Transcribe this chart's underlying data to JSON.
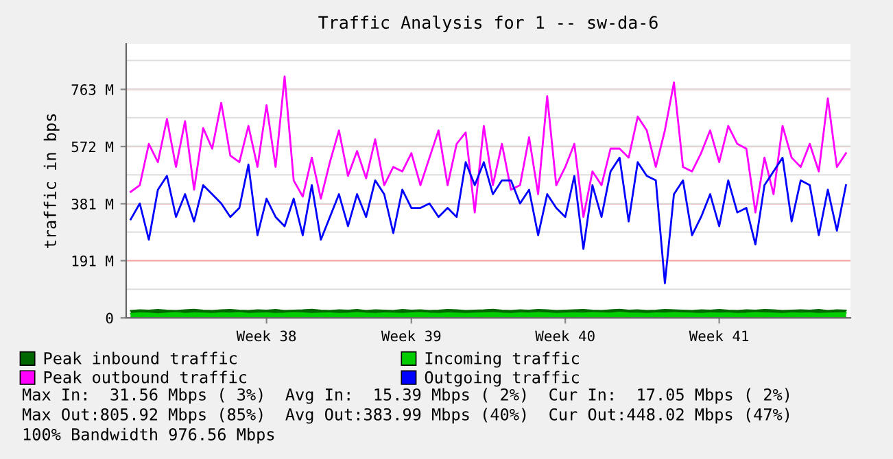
{
  "chart_data": {
    "type": "line",
    "title": "Traffic Analysis for 1 -- sw-da-6",
    "ylabel": "traffic in bps",
    "categories": [
      null,
      null,
      null,
      null,
      null,
      null,
      null,
      null,
      null,
      null,
      null,
      null,
      null,
      null,
      null,
      "Week 38",
      null,
      null,
      null,
      null,
      null,
      null,
      null,
      null,
      null,
      null,
      null,
      null,
      null,
      null,
      null,
      "Week 39",
      null,
      null,
      null,
      null,
      null,
      null,
      null,
      null,
      null,
      null,
      null,
      null,
      null,
      null,
      null,
      null,
      "Week 40",
      null,
      null,
      null,
      null,
      null,
      null,
      null,
      null,
      null,
      null,
      null,
      null,
      null,
      null,
      null,
      null,
      "Week 41",
      null,
      null,
      null,
      null,
      null,
      null,
      null,
      null,
      null,
      null,
      null,
      null,
      null,
      null
    ],
    "series": [
      {
        "name": "Peak inbound traffic",
        "color": "#006600",
        "type": "area",
        "values": [
          24,
          26,
          25,
          27,
          25,
          24,
          26,
          28,
          25,
          24,
          26,
          27,
          25,
          24,
          26,
          25,
          27,
          24,
          25,
          26,
          28,
          25,
          24,
          26,
          25,
          27,
          24,
          26,
          25,
          24,
          27,
          25,
          26,
          24,
          25,
          27,
          26,
          24,
          25,
          26,
          28,
          25,
          24,
          26,
          25,
          27,
          26,
          24,
          25,
          26,
          27,
          25,
          24,
          26,
          28,
          25,
          26,
          24,
          25,
          27,
          26,
          25,
          24,
          26,
          25,
          27,
          25,
          24,
          26,
          25,
          27,
          26,
          24,
          25,
          26,
          25,
          27,
          24,
          26,
          25
        ]
      },
      {
        "name": "Incoming traffic",
        "color": "#00cc00",
        "type": "area",
        "values": [
          14,
          16,
          15,
          13,
          15,
          17,
          14,
          16,
          15,
          14,
          16,
          15,
          17,
          14,
          15,
          16,
          14,
          15,
          17,
          16,
          14,
          15,
          16,
          14,
          15,
          17,
          15,
          14,
          16,
          15,
          14,
          16,
          17,
          15,
          14,
          16,
          15,
          14,
          15,
          16,
          17,
          15,
          14,
          16,
          15,
          17,
          16,
          14,
          15,
          16,
          15,
          17,
          16,
          15,
          18,
          16,
          15,
          14,
          16,
          15,
          17,
          16,
          15,
          14,
          16,
          15,
          16,
          14,
          15,
          17,
          16,
          15,
          14,
          16,
          15,
          16,
          14,
          15,
          16,
          17
        ]
      },
      {
        "name": "Peak outbound traffic",
        "color": "#ff00ff",
        "values": [
          421,
          443,
          581,
          520,
          664,
          504,
          657,
          428,
          634,
          565,
          718,
          542,
          520,
          641,
          504,
          710,
          504,
          806,
          459,
          405,
          535,
          398,
          520,
          626,
          474,
          557,
          466,
          596,
          443,
          504,
          489,
          550,
          443,
          535,
          626,
          443,
          581,
          619,
          352,
          641,
          443,
          581,
          428,
          443,
          603,
          413,
          740,
          443,
          504,
          581,
          337,
          489,
          443,
          565,
          565,
          535,
          672,
          626,
          504,
          626,
          786,
          504,
          489,
          550,
          626,
          520,
          641,
          581,
          565,
          352,
          535,
          413,
          641,
          535,
          504,
          581,
          489,
          733,
          504,
          550
        ]
      },
      {
        "name": "Outgoing traffic",
        "color": "#0000ff",
        "values": [
          329,
          382,
          261,
          428,
          474,
          337,
          413,
          322,
          443,
          413,
          382,
          337,
          367,
          512,
          276,
          398,
          337,
          306,
          398,
          276,
          443,
          261,
          337,
          413,
          306,
          413,
          337,
          459,
          413,
          283,
          428,
          367,
          367,
          382,
          337,
          367,
          337,
          520,
          443,
          520,
          413,
          459,
          459,
          382,
          428,
          276,
          413,
          367,
          337,
          474,
          230,
          443,
          337,
          489,
          535,
          322,
          520,
          474,
          459,
          116,
          413,
          459,
          276,
          337,
          413,
          306,
          459,
          352,
          367,
          245,
          443,
          489,
          535,
          322,
          459,
          443,
          276,
          428,
          291,
          443
        ]
      }
    ],
    "ylim": [
      0,
      915
    ],
    "yticks": [
      0,
      {
        "value": 191,
        "label": "191 M"
      },
      {
        "value": 381,
        "label": "381 M"
      },
      {
        "value": 572,
        "label": "572 M"
      },
      {
        "value": 763,
        "label": "763 M"
      }
    ],
    "grid": "y",
    "legend": "bottom",
    "annotations": [
      "Max In:  31.56 Mbps ( 3%)  Avg In:  15.39 Mbps ( 2%)  Cur In:  17.05 Mbps ( 2%)",
      "Max Out:805.92 Mbps (85%)  Avg Out:383.99 Mbps (40%)  Cur Out:448.02 Mbps (47%)",
      "100% Bandwidth 976.56 Mbps"
    ]
  }
}
